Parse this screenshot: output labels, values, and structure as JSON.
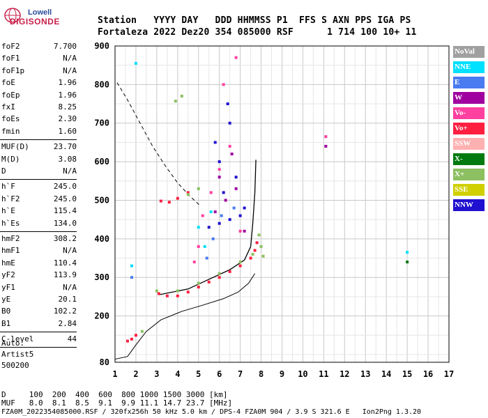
{
  "logo": {
    "line1": "Lowell",
    "line2": "DIGISONDE"
  },
  "header": {
    "row1": "Station   YYYY DAY   DDD HHMMSS P1  FFS S AXN PPS IGA PS",
    "row2": "Fortaleza 2022 Dez20 354 085000 RSF      1 714 100 10+ 11"
  },
  "params_a": [
    {
      "k": "foF2",
      "v": "7.700"
    },
    {
      "k": "foF1",
      "v": "N/A"
    },
    {
      "k": "foF1p",
      "v": "N/A"
    },
    {
      "k": "foE",
      "v": "1.96"
    },
    {
      "k": "foEp",
      "v": "1.96"
    },
    {
      "k": "fxI",
      "v": "8.25"
    },
    {
      "k": "foEs",
      "v": "2.30"
    },
    {
      "k": "fmin",
      "v": "1.60"
    }
  ],
  "params_b": [
    {
      "k": "MUF(D)",
      "v": "23.70"
    },
    {
      "k": "M(D)",
      "v": "3.08"
    },
    {
      "k": "D",
      "v": "N/A"
    }
  ],
  "params_c": [
    {
      "k": "h`F",
      "v": "245.0"
    },
    {
      "k": "h`F2",
      "v": "245.0"
    },
    {
      "k": "h`E",
      "v": "115.4"
    },
    {
      "k": "h`Es",
      "v": "134.0"
    }
  ],
  "params_d": [
    {
      "k": "hmF2",
      "v": "308.2"
    },
    {
      "k": "hmF1",
      "v": "N/A"
    },
    {
      "k": "hmE",
      "v": "110.4"
    },
    {
      "k": "yF2",
      "v": "113.9"
    },
    {
      "k": "yF1",
      "v": "N/A"
    },
    {
      "k": "yE",
      "v": "20.1"
    },
    {
      "k": "B0",
      "v": "102.2"
    },
    {
      "k": "B1",
      "v": "2.84"
    }
  ],
  "clevel": {
    "k": "C-level",
    "v": "44"
  },
  "auto": {
    "line1": "Auto:",
    "line2": "Artist5",
    "line3": "500200"
  },
  "legend": [
    {
      "label": "NoVal",
      "color": "#a0a0a0"
    },
    {
      "label": "NNE",
      "color": "#00e0ff"
    },
    {
      "label": "E",
      "color": "#4a7bf0"
    },
    {
      "label": "W",
      "color": "#a000a0"
    },
    {
      "label": "Vo-",
      "color": "#ff40a0"
    },
    {
      "label": "Vo+",
      "color": "#ff2040"
    },
    {
      "label": "SSW",
      "color": "#ffb0b0"
    },
    {
      "label": "X-",
      "color": "#007a10"
    },
    {
      "label": "X+",
      "color": "#8cc060"
    },
    {
      "label": "SSE",
      "color": "#d0d000"
    },
    {
      "label": "NNW",
      "color": "#2010d0"
    }
  ],
  "bottom": {
    "row1": "D     100  200  400  600  800 1000 1500 3000 [km]",
    "row2": "MUF   8.0  8.1  8.5  9.1  9.9 11.1 14.7 23.7 [MHz]",
    "row3": "FZA0M_2022354085000.RSF / 320fx256h 50 kHz 5.0 km / DPS-4 FZA0M 904 / 3.9 S 321.6 E   Ion2Png 1.3.20"
  },
  "chart_data": {
    "type": "scatter",
    "xlim": [
      1,
      17
    ],
    "ylim": [
      80,
      900
    ],
    "x_ticks": [
      1,
      2,
      3,
      4,
      5,
      6,
      7,
      8,
      9,
      10,
      11,
      12,
      13,
      14,
      15,
      16,
      17
    ],
    "y_ticks": [
      80,
      200,
      300,
      400,
      500,
      600,
      700,
      800,
      900
    ],
    "grid": true,
    "xlabel": "",
    "ylabel": "",
    "series": [
      {
        "color": "#ff2040",
        "values": [
          [
            3.1,
            258
          ],
          [
            3.5,
            252
          ],
          [
            4.0,
            252
          ],
          [
            4.5,
            262
          ],
          [
            5.0,
            275
          ],
          [
            5.5,
            288
          ],
          [
            6.0,
            300
          ],
          [
            6.5,
            315
          ],
          [
            7.0,
            330
          ],
          [
            7.5,
            350
          ],
          [
            7.7,
            370
          ],
          [
            7.8,
            390
          ],
          [
            3.2,
            498
          ],
          [
            3.6,
            495
          ],
          [
            4.0,
            505
          ],
          [
            4.5,
            520
          ],
          [
            2.0,
            150
          ],
          [
            1.8,
            140
          ],
          [
            1.6,
            135
          ]
        ]
      },
      {
        "color": "#8cc060",
        "values": [
          [
            3.0,
            265
          ],
          [
            4.0,
            265
          ],
          [
            5.0,
            285
          ],
          [
            6.0,
            310
          ],
          [
            7.0,
            340
          ],
          [
            7.6,
            360
          ],
          [
            8.0,
            380
          ],
          [
            7.9,
            410
          ],
          [
            8.1,
            355
          ],
          [
            4.5,
            515
          ],
          [
            5.0,
            530
          ],
          [
            2.3,
            160
          ],
          [
            3.9,
            757
          ],
          [
            4.2,
            770
          ]
        ]
      },
      {
        "color": "#2010d0",
        "values": [
          [
            5.5,
            430
          ],
          [
            6.0,
            440
          ],
          [
            6.5,
            450
          ],
          [
            7.0,
            460
          ],
          [
            6.2,
            520
          ],
          [
            6.8,
            560
          ],
          [
            6.0,
            600
          ],
          [
            5.8,
            650
          ],
          [
            6.5,
            700
          ],
          [
            6.4,
            750
          ],
          [
            7.2,
            480
          ]
        ]
      },
      {
        "color": "#a000a0",
        "values": [
          [
            5.8,
            470
          ],
          [
            6.3,
            500
          ],
          [
            6.8,
            530
          ],
          [
            7.2,
            420
          ],
          [
            6.0,
            560
          ],
          [
            6.6,
            620
          ],
          [
            11.1,
            640
          ]
        ]
      },
      {
        "color": "#ff40a0",
        "values": [
          [
            5.2,
            460
          ],
          [
            5.6,
            520
          ],
          [
            6.0,
            580
          ],
          [
            6.5,
            640
          ],
          [
            7.0,
            420
          ],
          [
            5.0,
            380
          ],
          [
            4.8,
            340
          ],
          [
            6.2,
            800
          ],
          [
            6.8,
            870
          ],
          [
            11.1,
            665
          ]
        ]
      },
      {
        "color": "#00e0ff",
        "values": [
          [
            5.3,
            380
          ],
          [
            5.0,
            430
          ],
          [
            5.6,
            470
          ],
          [
            2.0,
            855
          ],
          [
            1.8,
            330
          ],
          [
            15.0,
            365
          ]
        ]
      },
      {
        "color": "#4a7bf0",
        "values": [
          [
            5.7,
            400
          ],
          [
            6.1,
            460
          ],
          [
            6.7,
            480
          ],
          [
            5.4,
            350
          ],
          [
            1.8,
            300
          ]
        ]
      },
      {
        "color": "#007a10",
        "values": [
          [
            15.0,
            340
          ]
        ]
      }
    ]
  }
}
